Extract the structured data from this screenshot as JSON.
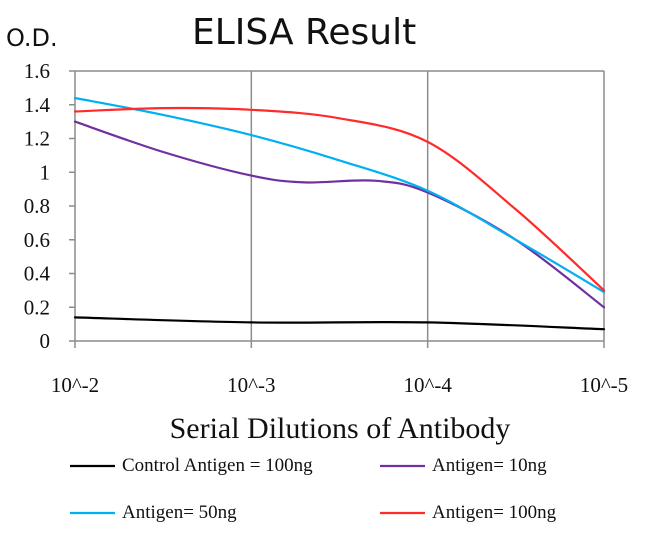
{
  "chart_data": {
    "type": "line",
    "title": "ELISA Result",
    "ylabel": "O.D.",
    "xlabel": "Serial Dilutions of Antibody",
    "categories": [
      "10^-2",
      "10^-3",
      "10^-4",
      "10^-5"
    ],
    "yticks": [
      "0",
      "0.2",
      "0.4",
      "0.6",
      "0.8",
      "1",
      "1.2",
      "1.4",
      "1.6"
    ],
    "ylim": [
      0,
      1.6
    ],
    "grid": "vertical-only",
    "legend_position": "bottom",
    "series": [
      {
        "name": "Control Antigen = 100ng",
        "color": "#000000",
        "values": [
          0.14,
          0.11,
          0.11,
          0.07
        ],
        "points": [
          [
            0,
            0.14
          ],
          [
            1,
            0.11
          ],
          [
            2,
            0.11
          ],
          [
            3,
            0.07
          ]
        ]
      },
      {
        "name": "Antigen= 10ng",
        "color": "#7030a0",
        "values": [
          1.3,
          0.97,
          0.88,
          0.2
        ],
        "points": [
          [
            0,
            1.3
          ],
          [
            0.5,
            1.12
          ],
          [
            1,
            0.98
          ],
          [
            1.3,
            0.94
          ],
          [
            1.7,
            0.95
          ],
          [
            2,
            0.88
          ],
          [
            2.5,
            0.6
          ],
          [
            3,
            0.2
          ]
        ]
      },
      {
        "name": "Antigen= 50ng",
        "color": "#00b0f0",
        "values": [
          1.44,
          1.21,
          0.89,
          0.29
        ],
        "points": [
          [
            0,
            1.44
          ],
          [
            0.5,
            1.34
          ],
          [
            1,
            1.22
          ],
          [
            1.5,
            1.07
          ],
          [
            2,
            0.89
          ],
          [
            2.5,
            0.6
          ],
          [
            3,
            0.29
          ]
        ]
      },
      {
        "name": "Antigen= 100ng",
        "color": "#ff2a2a",
        "values": [
          1.36,
          1.36,
          1.18,
          0.3
        ],
        "points": [
          [
            0,
            1.36
          ],
          [
            0.5,
            1.38
          ],
          [
            1,
            1.37
          ],
          [
            1.5,
            1.32
          ],
          [
            2,
            1.18
          ],
          [
            2.5,
            0.78
          ],
          [
            3,
            0.3
          ]
        ]
      }
    ]
  }
}
